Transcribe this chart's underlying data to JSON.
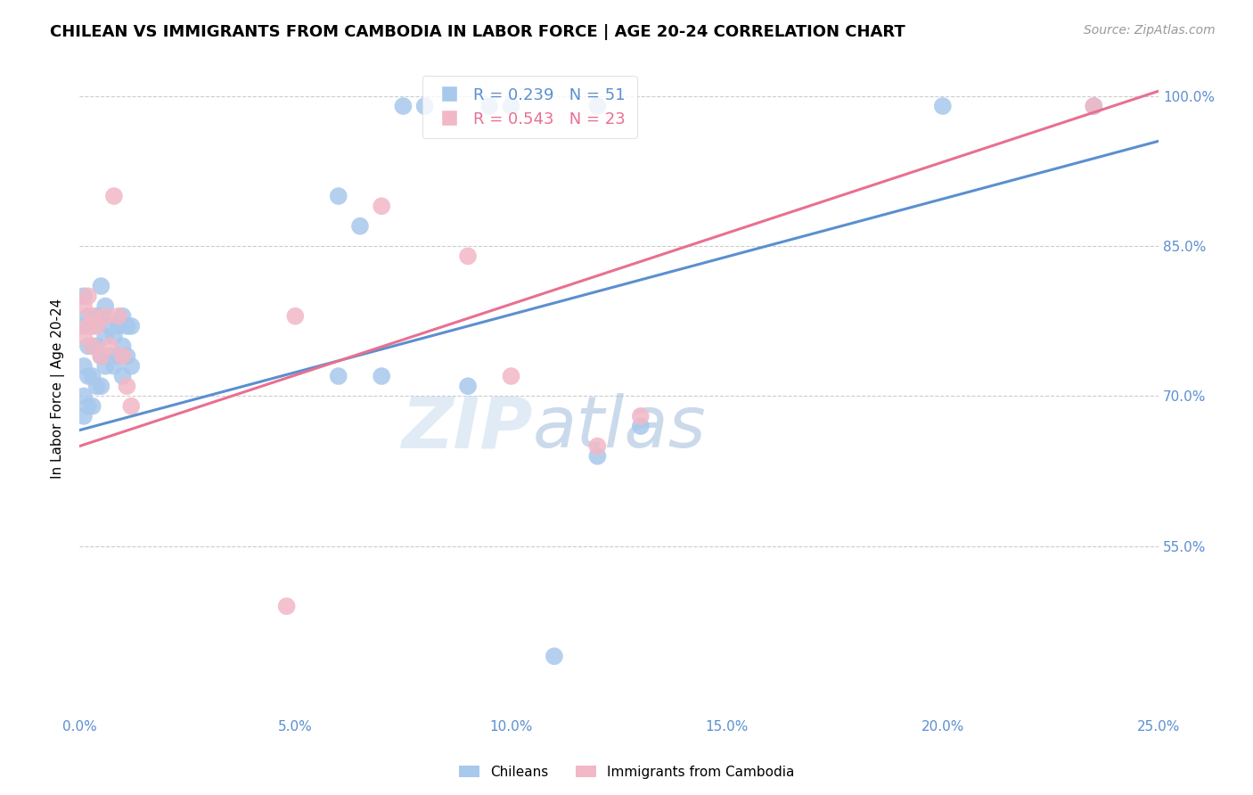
{
  "title": "CHILEAN VS IMMIGRANTS FROM CAMBODIA IN LABOR FORCE | AGE 20-24 CORRELATION CHART",
  "source": "Source: ZipAtlas.com",
  "ylabel": "In Labor Force | Age 20-24",
  "xlim": [
    0.0,
    0.25
  ],
  "ylim": [
    0.38,
    1.035
  ],
  "yticks": [
    0.55,
    0.7,
    0.85,
    1.0
  ],
  "ytick_labels": [
    "55.0%",
    "70.0%",
    "85.0%",
    "100.0%"
  ],
  "xticks": [
    0.0,
    0.05,
    0.1,
    0.15,
    0.2,
    0.25
  ],
  "xtick_labels": [
    "0.0%",
    "5.0%",
    "10.0%",
    "15.0%",
    "20.0%",
    "25.0%"
  ],
  "blue_color": "#A8C8EC",
  "pink_color": "#F2B8C6",
  "blue_line_color": "#5B8FD0",
  "pink_line_color": "#E87090",
  "axis_color": "#5B8FD0",
  "grid_color": "#CCCCCC",
  "legend_blue_label": "R = 0.239   N = 51",
  "legend_pink_label": "R = 0.543   N = 23",
  "blue_x": [
    0.001,
    0.001,
    0.001,
    0.001,
    0.001,
    0.002,
    0.002,
    0.002,
    0.002,
    0.003,
    0.003,
    0.003,
    0.003,
    0.004,
    0.004,
    0.004,
    0.005,
    0.005,
    0.005,
    0.005,
    0.006,
    0.006,
    0.006,
    0.007,
    0.007,
    0.008,
    0.008,
    0.009,
    0.009,
    0.01,
    0.01,
    0.01,
    0.011,
    0.011,
    0.012,
    0.012,
    0.06,
    0.065,
    0.075,
    0.08,
    0.095,
    0.1,
    0.12,
    0.2,
    0.235,
    0.12,
    0.06,
    0.07,
    0.09,
    0.13,
    0.11
  ],
  "blue_y": [
    0.8,
    0.77,
    0.73,
    0.7,
    0.68,
    0.78,
    0.75,
    0.72,
    0.69,
    0.77,
    0.75,
    0.72,
    0.69,
    0.78,
    0.75,
    0.71,
    0.81,
    0.78,
    0.74,
    0.71,
    0.79,
    0.76,
    0.73,
    0.77,
    0.74,
    0.76,
    0.73,
    0.77,
    0.74,
    0.78,
    0.75,
    0.72,
    0.77,
    0.74,
    0.77,
    0.73,
    0.9,
    0.87,
    0.99,
    0.99,
    0.99,
    0.99,
    0.99,
    0.99,
    0.99,
    0.64,
    0.72,
    0.72,
    0.71,
    0.67,
    0.44
  ],
  "pink_x": [
    0.001,
    0.001,
    0.002,
    0.002,
    0.003,
    0.003,
    0.004,
    0.005,
    0.006,
    0.007,
    0.008,
    0.009,
    0.01,
    0.011,
    0.012,
    0.05,
    0.07,
    0.09,
    0.1,
    0.12,
    0.13,
    0.235,
    0.048
  ],
  "pink_y": [
    0.79,
    0.76,
    0.8,
    0.77,
    0.78,
    0.75,
    0.77,
    0.74,
    0.78,
    0.75,
    0.9,
    0.78,
    0.74,
    0.71,
    0.69,
    0.78,
    0.89,
    0.84,
    0.72,
    0.65,
    0.68,
    0.99,
    0.49
  ],
  "blue_line_x0": 0.0,
  "blue_line_y0": 0.666,
  "blue_line_x1": 0.25,
  "blue_line_y1": 0.955,
  "pink_line_x0": 0.0,
  "pink_line_y0": 0.65,
  "pink_line_x1": 0.25,
  "pink_line_y1": 1.005,
  "title_fontsize": 13,
  "axis_label_fontsize": 11,
  "tick_fontsize": 11,
  "legend_fontsize": 13
}
